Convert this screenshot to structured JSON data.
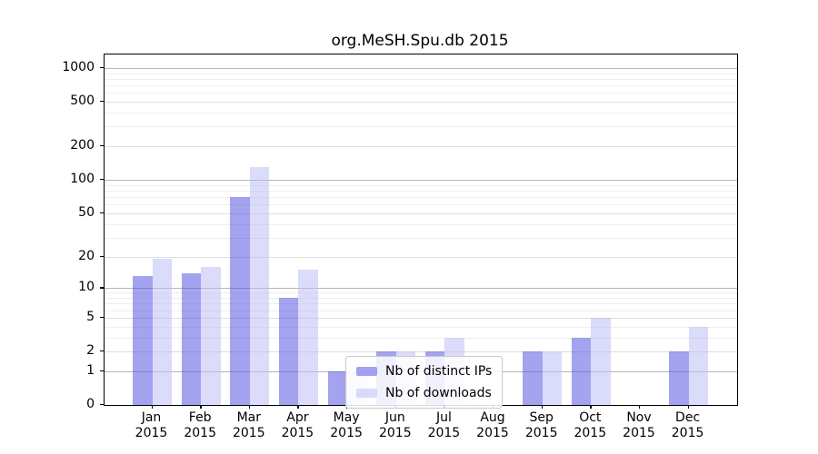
{
  "chart_data": {
    "type": "bar",
    "title": "org.MeSH.Spu.db 2015",
    "categories": [
      "Jan",
      "Feb",
      "Mar",
      "Apr",
      "May",
      "Jun",
      "Jul",
      "Aug",
      "Sep",
      "Oct",
      "Nov",
      "Dec"
    ],
    "x_year_label": "2015",
    "series": [
      {
        "name": "Nb of distinct IPs",
        "color": "rgba(72,72,226,0.5)",
        "values": [
          13,
          14,
          70,
          8,
          1,
          2,
          2,
          0,
          2,
          3,
          0,
          2
        ]
      },
      {
        "name": "Nb of downloads",
        "color": "rgba(183,183,246,0.5)",
        "values": [
          19,
          16,
          130,
          15,
          1,
          2,
          3,
          0,
          2,
          5,
          0,
          4
        ]
      }
    ],
    "yticks": [
      0,
      1,
      2,
      5,
      10,
      20,
      50,
      100,
      200,
      500,
      1000
    ],
    "ytick_major": [
      1,
      10,
      100,
      1000
    ],
    "scale": "log1p",
    "ylim": [
      0,
      1320
    ],
    "xlabel": "",
    "ylabel": "",
    "grid": "on",
    "legend_position": "lower center-left, overlapping plot",
    "colors": {
      "grid_major": "#b6b6b6",
      "grid_mid": "#dedede",
      "grid_minor": "#eeeeee",
      "spine": "#000000",
      "text": "#000000",
      "background": "#ffffff"
    }
  }
}
